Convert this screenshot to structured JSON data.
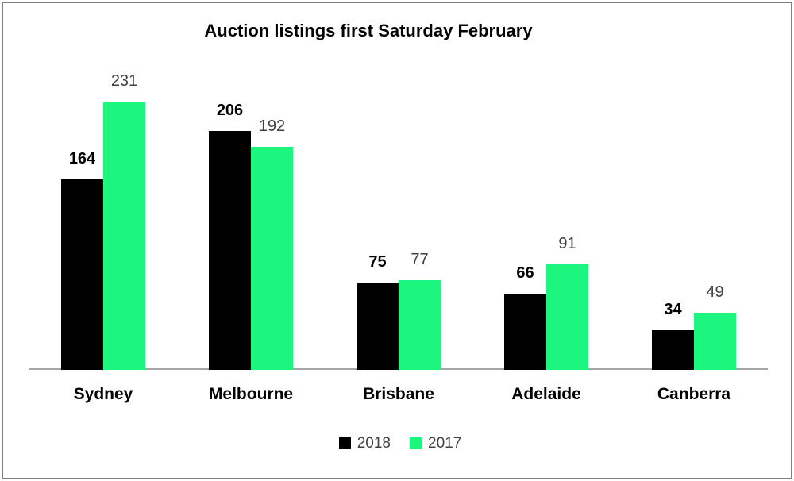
{
  "window": {
    "background": "#ffffff",
    "border_color": "#808080"
  },
  "chart_data": {
    "type": "bar",
    "title": "Auction listings first Saturday February",
    "categories": [
      "Sydney",
      "Melbourne",
      "Brisbane",
      "Adelaide",
      "Canberra"
    ],
    "series": [
      {
        "name": "2018",
        "color": "#000000",
        "values": [
          164,
          206,
          75,
          66,
          34
        ],
        "label_style": "bold"
      },
      {
        "name": "2017",
        "color": "#1cf57e",
        "values": [
          231,
          192,
          77,
          91,
          49
        ],
        "label_style": "regular"
      }
    ],
    "xlabel": "",
    "ylabel": "",
    "ylim": [
      0,
      240
    ],
    "grid": false,
    "data_labels": true,
    "legend_position": "bottom",
    "axis_line_color": "#a6a6a6",
    "label_colors": {
      "2018": "#000000",
      "2017": "#3f3f3f"
    }
  }
}
